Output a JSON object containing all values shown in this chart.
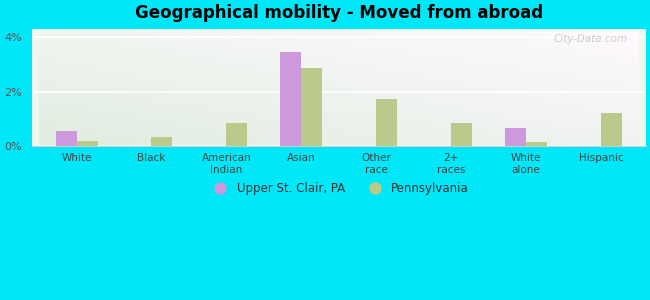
{
  "title": "Geographical mobility - Moved from abroad",
  "categories": [
    "White",
    "Black",
    "American\nIndian",
    "Asian",
    "Other\nrace",
    "2+\nraces",
    "White\nalone",
    "Hispanic"
  ],
  "upper_st_clair": [
    0.55,
    0.0,
    0.0,
    3.45,
    0.0,
    0.0,
    0.65,
    0.0
  ],
  "pennsylvania": [
    0.18,
    0.32,
    0.82,
    2.88,
    1.72,
    0.82,
    0.15,
    1.22
  ],
  "color_usc": "#cc99dd",
  "color_pa": "#bbc98a",
  "bg_color": "#00e8f8",
  "ylim": [
    0,
    4.3
  ],
  "yticks": [
    0,
    2,
    4
  ],
  "ytick_labels": [
    "0%",
    "2%",
    "4%"
  ],
  "bar_width": 0.28,
  "legend_labels": [
    "Upper St. Clair, PA",
    "Pennsylvania"
  ],
  "watermark": "City-Data.com"
}
